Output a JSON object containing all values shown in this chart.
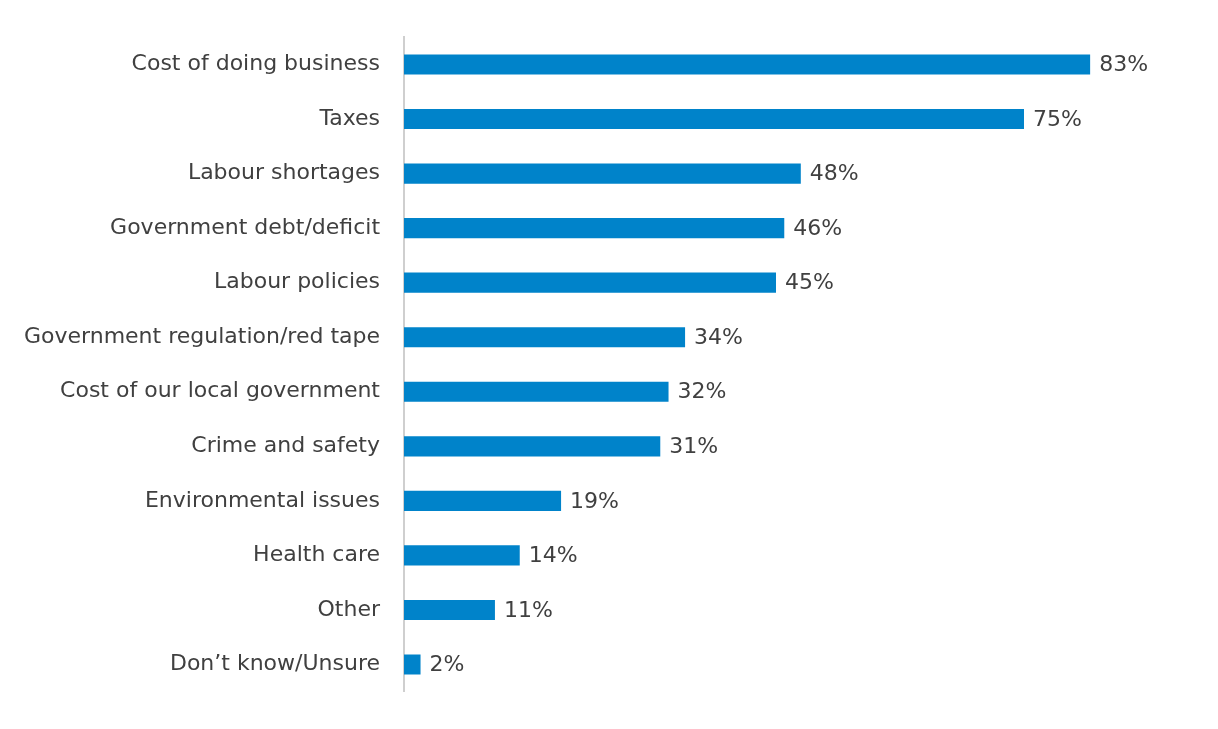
{
  "chart_data": {
    "type": "bar",
    "orientation": "horizontal",
    "tick_labels": "y",
    "legend": false,
    "categories": [
      "Cost of doing business",
      "Taxes",
      "Labour shortages",
      "Government debt/deficit",
      "Labour policies",
      "Government regulation/red tape",
      "Cost of our local government",
      "Crime and safety",
      "Environmental issues",
      "Health care",
      "Other",
      "Don’t know/Unsure"
    ],
    "values": [
      83,
      75,
      48,
      46,
      45,
      34,
      32,
      31,
      19,
      14,
      11,
      2
    ],
    "value_labels": [
      "83%",
      "75%",
      "48%",
      "46%",
      "45%",
      "34%",
      "32%",
      "31%",
      "19%",
      "14%",
      "11%",
      "2%"
    ],
    "color": "#0083ca"
  }
}
